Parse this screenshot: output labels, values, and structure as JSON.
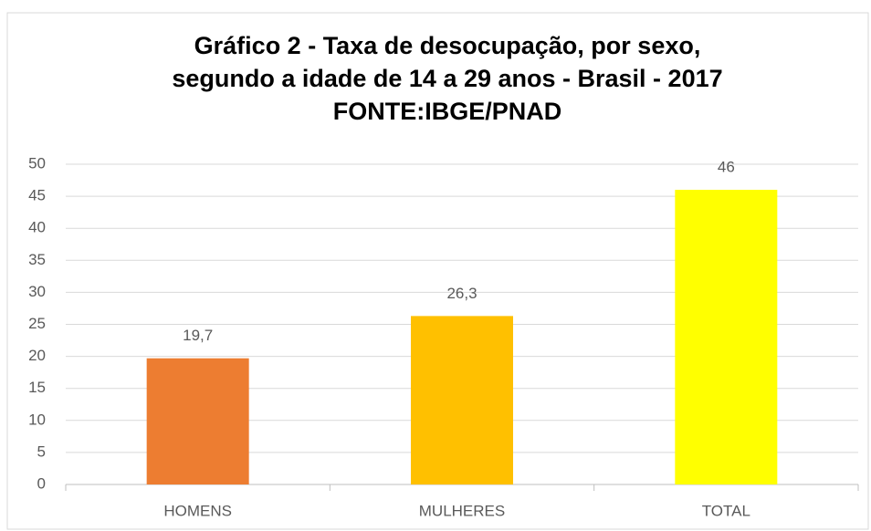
{
  "chart_data": {
    "type": "bar",
    "title": [
      "Gráfico 2 - Taxa de desocupação, por sexo,",
      "segundo a idade de 14 a 29 anos - Brasil - 2017",
      "FONTE:IBGE/PNAD"
    ],
    "categories": [
      "HOMENS",
      "MULHERES",
      "TOTAL"
    ],
    "values": [
      19.7,
      26.3,
      46
    ],
    "value_labels": [
      "19,7",
      "26,3",
      "46"
    ],
    "colors": [
      "#ed7d31",
      "#ffc000",
      "#ffff00"
    ],
    "ylim": [
      0,
      50
    ],
    "yticks": [
      0,
      5,
      10,
      15,
      20,
      25,
      30,
      35,
      40,
      45,
      50
    ],
    "grid": true
  }
}
